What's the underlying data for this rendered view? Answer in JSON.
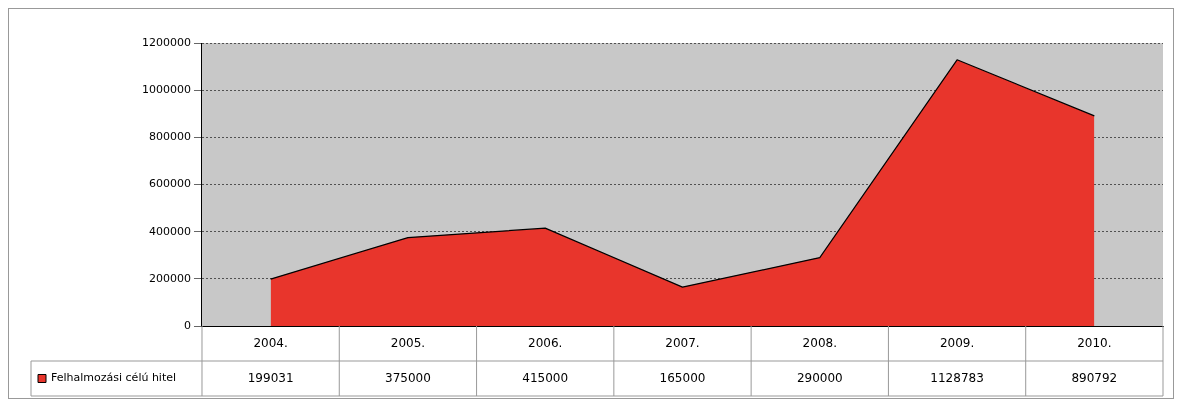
{
  "chart_data": {
    "type": "area",
    "categories": [
      "2004.",
      "2005.",
      "2006.",
      "2007.",
      "2008.",
      "2009.",
      "2010."
    ],
    "series": [
      {
        "name": "Felhalmozási célú hitel",
        "color": "#e8352c",
        "values": [
          199031,
          375000,
          415000,
          165000,
          290000,
          1128783,
          890792
        ]
      }
    ],
    "ylim": [
      0,
      1200000
    ],
    "yticks": [
      0,
      200000,
      400000,
      600000,
      800000,
      1000000,
      1200000
    ],
    "grid": "y",
    "legend": "bottom",
    "data_labels": true,
    "marker": "none"
  }
}
